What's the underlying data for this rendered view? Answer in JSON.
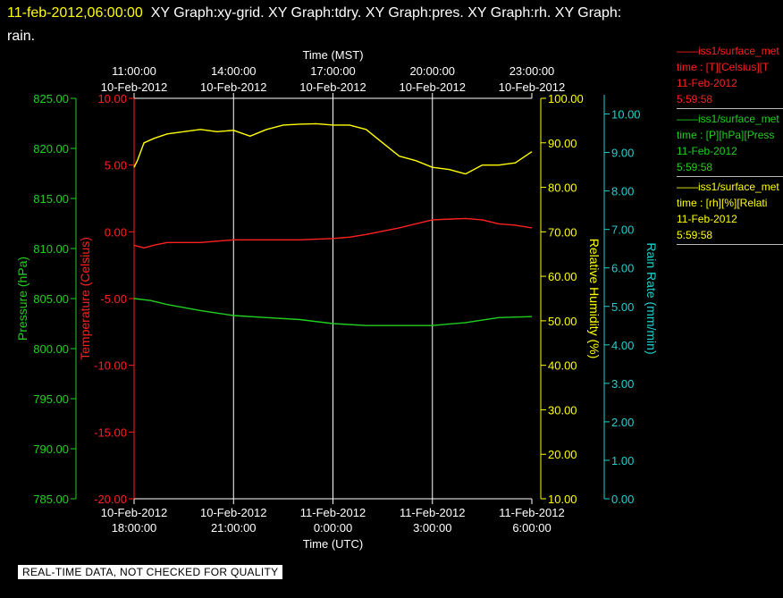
{
  "header": {
    "date_text": "11-feb-2012,06:00:00",
    "graphs_text": "XY Graph:xy-grid.  XY Graph:tdry.  XY Graph:pres.  XY Graph:rh.  XY Graph:",
    "line2": "rain."
  },
  "legend": [
    {
      "color": "#ff2020",
      "line1": "——iss1/surface_met",
      "line2": "time : [T][Celsius][T",
      "line3": "11-Feb-2012",
      "line4": "5:59:58"
    },
    {
      "color": "#20d020",
      "line1": "——iss1/surface_met",
      "line2": "time : [P][hPa][Press",
      "line3": "11-Feb-2012",
      "line4": "5:59:58"
    },
    {
      "color": "#ffff00",
      "line1": "——iss1/surface_met",
      "line2": "time : [rh][%][Relati",
      "line3": "11-Feb-2012",
      "line4": "5:59:58"
    }
  ],
  "banner": "REAL-TIME DATA, NOT CHECKED FOR QUALITY",
  "chart_data": {
    "type": "line",
    "title": "",
    "x_top_label": "Time (MST)",
    "x_bottom_label": "Time (UTC)",
    "x_range_hours": [
      0,
      12
    ],
    "top_ticks": [
      {
        "x": 0,
        "time": "11:00:00",
        "date": "10-Feb-2012"
      },
      {
        "x": 3,
        "time": "14:00:00",
        "date": "10-Feb-2012"
      },
      {
        "x": 6,
        "time": "17:00:00",
        "date": "10-Feb-2012"
      },
      {
        "x": 9,
        "time": "20:00:00",
        "date": "10-Feb-2012"
      },
      {
        "x": 12,
        "time": "23:00:00",
        "date": "10-Feb-2012"
      }
    ],
    "bottom_ticks": [
      {
        "x": 0,
        "date": "10-Feb-2012",
        "time": "18:00:00"
      },
      {
        "x": 3,
        "date": "10-Feb-2012",
        "time": "21:00:00"
      },
      {
        "x": 6,
        "date": "11-Feb-2012",
        "time": "0:00:00"
      },
      {
        "x": 9,
        "date": "11-Feb-2012",
        "time": "3:00:00"
      },
      {
        "x": 12,
        "date": "11-Feb-2012",
        "time": "6:00:00"
      }
    ],
    "axes": {
      "pressure": {
        "label": "Pressure (hPa)",
        "color": "#20d020",
        "range": [
          785,
          825
        ],
        "ticks": [
          "785.00",
          "790.00",
          "795.00",
          "800.00",
          "805.00",
          "810.00",
          "815.00",
          "820.00",
          "825.00"
        ]
      },
      "temperature": {
        "label": "Temperature (Celsius)",
        "color": "#ff2020",
        "range": [
          -20,
          10
        ],
        "ticks": [
          "-20.00",
          "-15.00",
          "-10.00",
          "-5.00",
          "0.00",
          "5.00",
          "10.00"
        ]
      },
      "humidity": {
        "label": "Relative Humidity (%)",
        "color": "#ffff00",
        "range": [
          10,
          100
        ],
        "ticks": [
          "10.00",
          "20.00",
          "30.00",
          "40.00",
          "50.00",
          "60.00",
          "70.00",
          "80.00",
          "90.00",
          "100.00"
        ]
      },
      "rain": {
        "label": "Rain Rate (mm/min)",
        "color": "#20d0d0",
        "range": [
          0,
          10.5
        ],
        "ticks": [
          "0.00",
          "1.00",
          "2.00",
          "3.00",
          "4.00",
          "5.00",
          "6.00",
          "7.00",
          "8.00",
          "9.00",
          "10.00"
        ]
      }
    },
    "grid": true,
    "series": [
      {
        "name": "Temperature",
        "axis": "temperature",
        "color": "#ff2020",
        "x": [
          0,
          0.3,
          0.6,
          1.0,
          2.0,
          3.0,
          4.0,
          5.0,
          6.0,
          6.5,
          7.0,
          8.0,
          9.0,
          10.0,
          10.5,
          11.0,
          11.5,
          12.0
        ],
        "y": [
          -1.0,
          -1.2,
          -1.0,
          -0.8,
          -0.8,
          -0.6,
          -0.6,
          -0.6,
          -0.5,
          -0.4,
          -0.2,
          0.3,
          0.9,
          1.0,
          0.9,
          0.6,
          0.5,
          0.3
        ]
      },
      {
        "name": "Pressure",
        "axis": "pressure",
        "color": "#20d020",
        "x": [
          0,
          0.5,
          1.0,
          2.0,
          3.0,
          4.0,
          5.0,
          6.0,
          7.0,
          8.0,
          9.0,
          10.0,
          11.0,
          12.0
        ],
        "y": [
          805.0,
          804.8,
          804.4,
          803.8,
          803.3,
          803.1,
          802.9,
          802.5,
          802.3,
          802.3,
          802.3,
          802.6,
          803.1,
          803.2
        ]
      },
      {
        "name": "Relative Humidity",
        "axis": "humidity",
        "color": "#ffff00",
        "x": [
          0,
          0.1,
          0.3,
          0.6,
          1.0,
          1.5,
          2.0,
          2.5,
          3.0,
          3.5,
          4.0,
          4.5,
          5.0,
          5.5,
          6.0,
          6.5,
          7.0,
          7.5,
          8.0,
          8.5,
          9.0,
          9.5,
          10.0,
          10.5,
          11.0,
          11.5,
          12.0
        ],
        "y": [
          84.5,
          86,
          90,
          91,
          92,
          92.5,
          93,
          92.5,
          92.8,
          91.5,
          93,
          94,
          94.2,
          94.3,
          94,
          94,
          93,
          90,
          87,
          86,
          84.5,
          84,
          83,
          85,
          85,
          85.5,
          88
        ]
      },
      {
        "name": "Rain Rate",
        "axis": "rain",
        "color": "#20d0d0",
        "x": [],
        "y": []
      }
    ]
  }
}
